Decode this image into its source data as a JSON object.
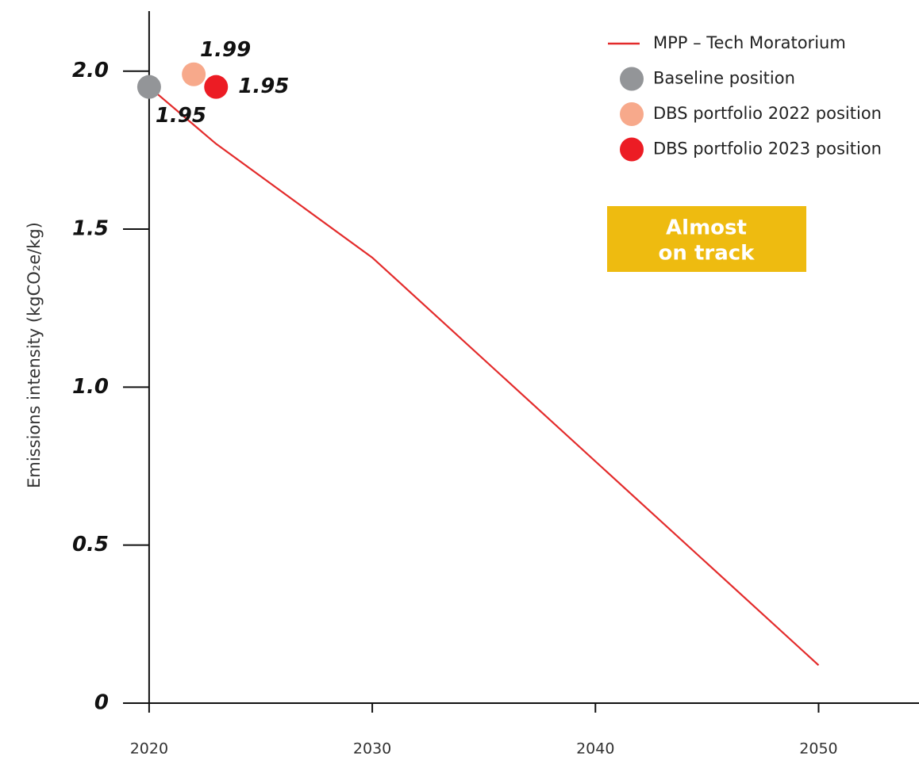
{
  "chart_data": {
    "type": "line",
    "y_label": "Emissions intensity (kgCO₂e/kg)",
    "annotation": [
      "Almost",
      "on track"
    ],
    "annotation_color": "#eebb10",
    "xlim": [
      2018.83,
      2054.5
    ],
    "xticks": [
      2020,
      2030,
      2040,
      2050
    ],
    "ylim": [
      0,
      2.19
    ],
    "yticks": [
      0,
      {
        "value": 0.5,
        "label": "0.5"
      },
      {
        "value": 1,
        "label": "1.0"
      },
      {
        "value": 1.5,
        "label": "1.5"
      },
      {
        "value": 2,
        "label": "2.0"
      }
    ],
    "series": [
      {
        "name": "MPP – Tech Moratorium",
        "color": "#e32b2b",
        "type": "line",
        "x": [
          2020,
          2023,
          2030,
          2050
        ],
        "values": [
          1.95,
          1.77,
          1.41,
          0.12
        ]
      },
      {
        "name": "Baseline position",
        "color": "#939598",
        "type": "scatter",
        "x": [
          2020
        ],
        "values": [
          1.95
        ]
      },
      {
        "name": "DBS portfolio 2022 position",
        "color": "#f7a98b",
        "type": "scatter",
        "x": [
          2022
        ],
        "values": [
          1.99
        ]
      },
      {
        "name": "DBS portfolio 2023 position",
        "color": "#ec1c24",
        "type": "scatter",
        "x": [
          2023
        ],
        "values": [
          1.95
        ]
      }
    ]
  }
}
